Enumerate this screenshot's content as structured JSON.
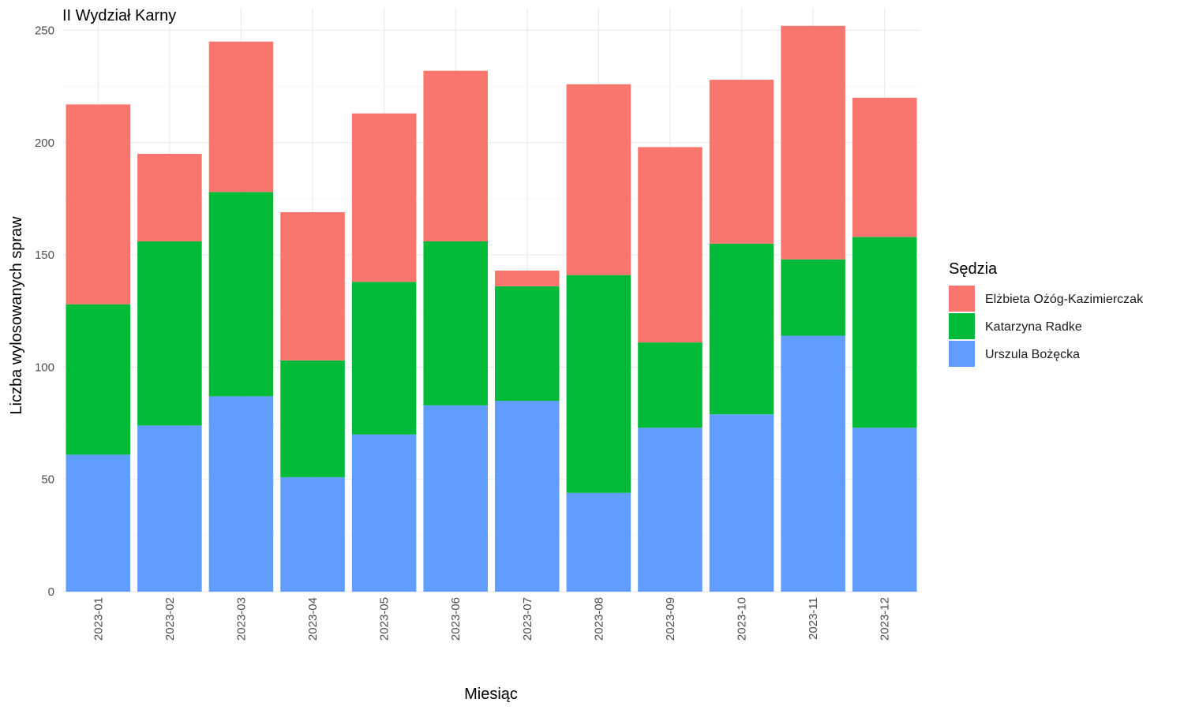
{
  "chart_data": {
    "type": "bar",
    "stacked": true,
    "title": "II Wydział Karny",
    "xlabel": "Miesiąc",
    "ylabel": "Liczba wylosowanych spraw",
    "ylim": [
      0,
      260
    ],
    "yticks": [
      0,
      50,
      100,
      150,
      200,
      250
    ],
    "grid": true,
    "categories": [
      "2023-01",
      "2023-02",
      "2023-03",
      "2023-04",
      "2023-05",
      "2023-06",
      "2023-07",
      "2023-08",
      "2023-09",
      "2023-10",
      "2023-11",
      "2023-12"
    ],
    "series": [
      {
        "name": "Urszula Bożęcka",
        "color": "#619CFF",
        "values": [
          61,
          74,
          87,
          51,
          70,
          83,
          85,
          44,
          73,
          79,
          114,
          73
        ]
      },
      {
        "name": "Katarzyna Radke",
        "color": "#00BA38",
        "values": [
          67,
          82,
          91,
          52,
          68,
          73,
          51,
          97,
          38,
          76,
          34,
          85
        ]
      },
      {
        "name": "Elżbieta Ożóg-Kazimierczak",
        "color": "#F8766D",
        "values": [
          89,
          39,
          67,
          66,
          75,
          76,
          7,
          85,
          87,
          73,
          104,
          62
        ]
      }
    ],
    "legend": {
      "title": "Sędzia",
      "position": "right",
      "order": [
        "Elżbieta Ożóg-Kazimierczak",
        "Katarzyna Radke",
        "Urszula Bożęcka"
      ]
    }
  }
}
